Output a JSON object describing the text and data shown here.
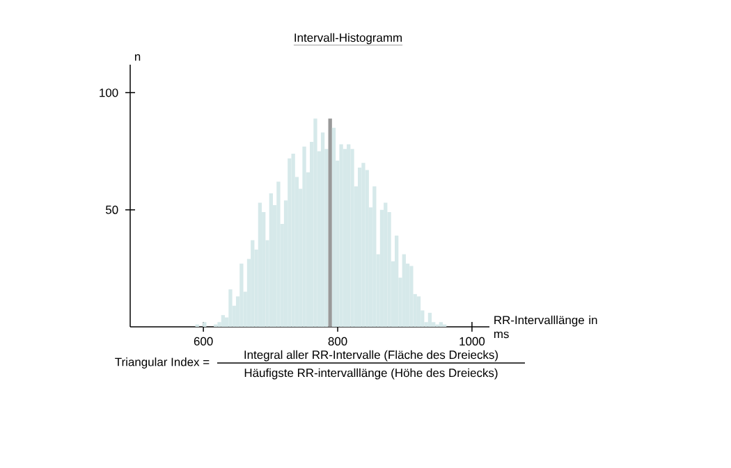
{
  "chart_data": {
    "type": "histogram",
    "title": "Intervall-Histogramm",
    "xlabel": "RR-Intervalllänge in ms",
    "ylabel": "n",
    "bins": [
      588,
      593.5,
      599,
      604.5,
      610,
      615.5,
      621,
      626.5,
      632,
      637.5,
      643,
      648.5,
      654,
      659.5,
      665,
      670.5,
      676,
      681.5,
      687,
      692.5,
      698,
      703.5,
      709,
      714.5,
      720,
      725.5,
      731,
      736.5,
      742,
      747.5,
      753,
      758.5,
      764,
      769.5,
      775,
      780.5,
      786,
      791.5,
      797,
      802.5,
      808,
      813.5,
      819,
      824.5,
      830,
      835.5,
      841,
      846.5,
      852,
      857.5,
      863,
      868.5,
      874,
      879.5,
      885,
      890.5,
      896,
      901.5,
      907,
      912.5,
      918,
      923.5,
      929,
      934.5,
      940,
      945.5,
      951,
      956.5,
      962
    ],
    "values": [
      1,
      0,
      2,
      0,
      0,
      1,
      2,
      5,
      4,
      16,
      9,
      13,
      27,
      15,
      29,
      37,
      33,
      53,
      49,
      37,
      57,
      52,
      62,
      44,
      54,
      72,
      74,
      64,
      59,
      77,
      66,
      79,
      89,
      75,
      83,
      76,
      89,
      85,
      71,
      78,
      76,
      78,
      76,
      60,
      68,
      70,
      67,
      51,
      60,
      31,
      50,
      53,
      49,
      28,
      39,
      21,
      31,
      27,
      26,
      14,
      13,
      7,
      2,
      6,
      2,
      1,
      2,
      1
    ],
    "colors": [
      "#d6e9ea",
      "#d6e9ea",
      "#d6e9ea",
      "#d6e9ea",
      "#d6e9ea",
      "#d6e9ea",
      "#d6e9ea",
      "#d6e9ea",
      "#d6e9ea",
      "#d6e9ea",
      "#d6e9ea",
      "#d6e9ea",
      "#d6e9ea",
      "#d6e9ea",
      "#d6e9ea",
      "#d6e9ea",
      "#d6e9ea",
      "#d6e9ea",
      "#d6e9ea",
      "#d6e9ea",
      "#d6e9ea",
      "#d6e9ea",
      "#d6e9ea",
      "#d6e9ea",
      "#d6e9ea",
      "#d6e9ea",
      "#d6e9ea",
      "#d6e9ea",
      "#d6e9ea",
      "#d6e9ea",
      "#d6e9ea",
      "#d6e9ea",
      "#d6e9ea",
      "#d6e9ea",
      "#d6e9ea",
      "#d6e9ea",
      "#999999",
      "#d6e9ea",
      "#d6e9ea",
      "#d6e9ea",
      "#d6e9ea",
      "#d6e9ea",
      "#d6e9ea",
      "#d6e9ea",
      "#d6e9ea",
      "#d6e9ea",
      "#d6e9ea",
      "#d6e9ea",
      "#d6e9ea",
      "#d6e9ea",
      "#d6e9ea",
      "#d6e9ea",
      "#d6e9ea",
      "#d6e9ea",
      "#d6e9ea",
      "#d6e9ea",
      "#d6e9ea",
      "#d6e9ea",
      "#d6e9ea",
      "#d6e9ea",
      "#d6e9ea",
      "#d6e9ea",
      "#d6e9ea",
      "#d6e9ea",
      "#d6e9ea",
      "#d6e9ea",
      "#d6e9ea",
      "#d6e9ea"
    ],
    "xlim": [
      491,
      1026
    ],
    "ylim": [
      0,
      112
    ],
    "xticks": [
      600,
      800,
      1000
    ],
    "yticks": [
      50,
      100
    ],
    "annotations": [
      "Triangular Index =",
      "Integral aller RR-Intervalle (Fläche des Dreiecks)",
      "Häufigste RR-intervalllänge (Höhe des Dreiecks)"
    ]
  }
}
